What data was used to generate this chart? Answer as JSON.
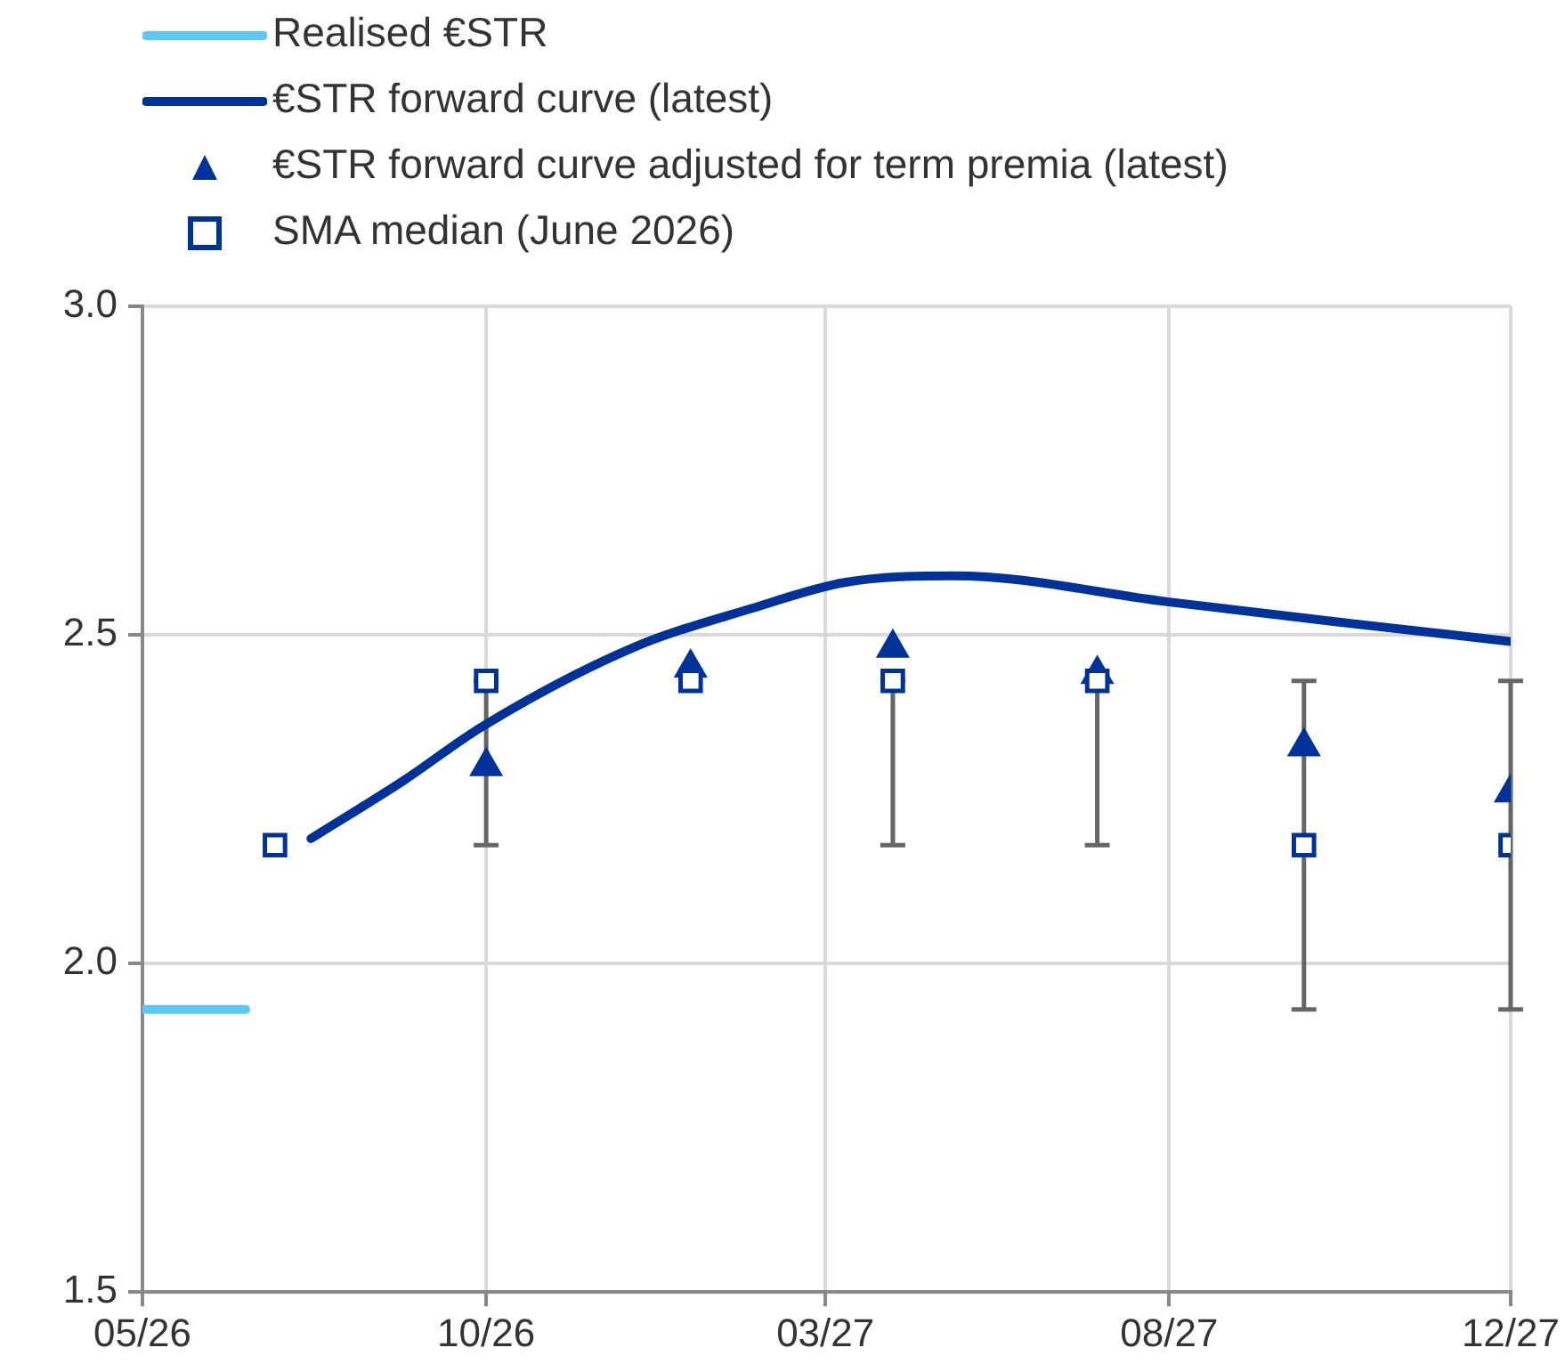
{
  "chart_data": {
    "type": "line",
    "xlim": [
      "2026-05-01",
      "2027-12-31"
    ],
    "xticks": [
      {
        "value": "2026-05-01",
        "label": "05/26"
      },
      {
        "value": "2026-10-01",
        "label": "10/26"
      },
      {
        "value": "2027-03-01",
        "label": "03/27"
      },
      {
        "value": "2027-08-01",
        "label": "08/27"
      },
      {
        "value": "2027-12-31",
        "label": "12/27"
      }
    ],
    "ylim": [
      1.5,
      3.0
    ],
    "yticks": [
      {
        "value": 1.5,
        "label": "1.5"
      },
      {
        "value": 2.0,
        "label": "2.0"
      },
      {
        "value": 2.5,
        "label": "2.5"
      },
      {
        "value": 3.0,
        "label": "3.0"
      }
    ],
    "grid": true,
    "legend": "top left",
    "series": [
      {
        "name": "Realised €STR",
        "color": "#5bc8f5",
        "marker": "none",
        "x": [
          "2026-05-01",
          "2026-05-16",
          "2026-05-31",
          "2026-06-16"
        ],
        "values": [
          1.93,
          1.93,
          1.93,
          1.93
        ]
      },
      {
        "name": "€STR forward curve (latest)",
        "color": "#003299",
        "marker": "none",
        "x": [
          "2026-07-15",
          "2026-08-26",
          "2026-09-29",
          "2026-12-05",
          "2027-01-27",
          "2027-03-10",
          "2027-04-27",
          "2027-08-01",
          "2027-10-14",
          "2027-12-31"
        ],
        "values": [
          2.19,
          2.28,
          2.36,
          2.48,
          2.54,
          2.58,
          2.59,
          2.55,
          2.52,
          2.49
        ]
      },
      {
        "name": "€STR forward curve adjusted for term premia (latest)",
        "type": "scatter",
        "color": "#003299",
        "marker": "triangle",
        "x": [
          "2026-10-01",
          "2026-12-31",
          "2027-03-31",
          "2027-06-30",
          "2027-09-30",
          "2027-12-31"
        ],
        "values": [
          2.3,
          2.45,
          2.48,
          2.44,
          2.33,
          2.26
        ]
      },
      {
        "name": "SMA median (June 2026)",
        "type": "scatter",
        "color": "#003299",
        "marker": "square",
        "x": [
          "2026-06-29",
          "2026-10-01",
          "2026-12-31",
          "2027-03-31",
          "2027-06-30",
          "2027-09-30",
          "2027-12-31"
        ],
        "values": [
          2.18,
          2.43,
          2.43,
          2.43,
          2.43,
          2.18,
          2.18
        ],
        "errors": [
          null,
          [
            2.18,
            2.43
          ],
          null,
          [
            2.18,
            2.43
          ],
          [
            2.18,
            2.43
          ],
          [
            1.93,
            2.43
          ],
          [
            1.93,
            2.43
          ]
        ]
      }
    ]
  }
}
